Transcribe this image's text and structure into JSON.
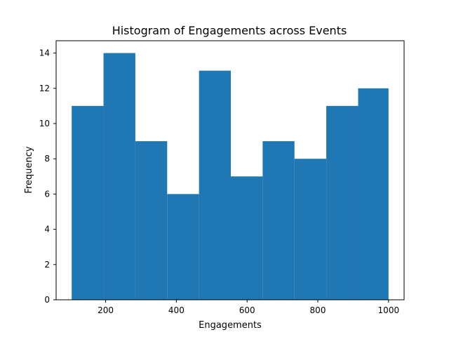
{
  "chart_data": {
    "type": "bar",
    "title": "Histogram of Engagements across Events",
    "xlabel": "Engagements",
    "ylabel": "Frequency",
    "bin_edges": [
      104,
      194,
      284,
      374,
      464,
      554,
      644,
      734,
      824,
      914,
      1000
    ],
    "values": [
      11,
      14,
      9,
      6,
      13,
      7,
      9,
      8,
      11,
      12
    ],
    "xlim": [
      60,
      1044
    ],
    "ylim": [
      0,
      14.7
    ],
    "xticks": [
      200,
      400,
      600,
      800,
      1000
    ],
    "yticks": [
      0,
      2,
      4,
      6,
      8,
      10,
      12,
      14
    ],
    "grid": false,
    "bar_color": "#1f77b4"
  }
}
